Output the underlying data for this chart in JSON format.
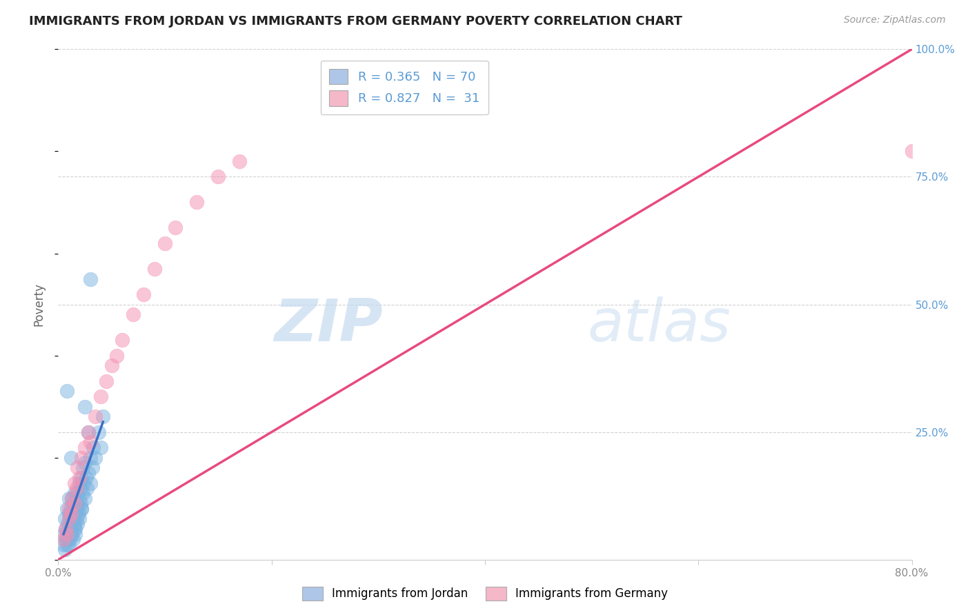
{
  "title": "IMMIGRANTS FROM JORDAN VS IMMIGRANTS FROM GERMANY POVERTY CORRELATION CHART",
  "source": "Source: ZipAtlas.com",
  "ylabel": "Poverty",
  "xlim": [
    0.0,
    0.8
  ],
  "ylim": [
    0.0,
    1.0
  ],
  "xticks": [
    0.0,
    0.2,
    0.4,
    0.6,
    0.8
  ],
  "xticklabels": [
    "0.0%",
    "",
    "",
    "",
    "80.0%"
  ],
  "ytick_positions": [
    0.0,
    0.25,
    0.5,
    0.75,
    1.0
  ],
  "ytick_labels_right": [
    "",
    "25.0%",
    "50.0%",
    "75.0%",
    "100.0%"
  ],
  "legend_label_jordan": "R = 0.365   N = 70",
  "legend_label_germany": "R = 0.827   N =  31",
  "jordan_color": "#7ab3e0",
  "germany_color": "#f48fb1",
  "jordan_line_color": "#3a6fc4",
  "germany_line_color": "#e84a7f",
  "diagonal_color": "#b8cfe0",
  "watermark_zip": "ZIP",
  "watermark_atlas": "atlas",
  "background_color": "#ffffff",
  "grid_color": "#cccccc",
  "jordan_x": [
    0.005,
    0.006,
    0.007,
    0.008,
    0.008,
    0.009,
    0.01,
    0.01,
    0.01,
    0.011,
    0.011,
    0.012,
    0.012,
    0.012,
    0.013,
    0.013,
    0.014,
    0.014,
    0.015,
    0.015,
    0.015,
    0.016,
    0.016,
    0.017,
    0.017,
    0.018,
    0.018,
    0.019,
    0.02,
    0.02,
    0.021,
    0.021,
    0.022,
    0.022,
    0.023,
    0.023,
    0.024,
    0.025,
    0.025,
    0.026,
    0.027,
    0.028,
    0.03,
    0.03,
    0.032,
    0.033,
    0.035,
    0.038,
    0.04,
    0.042,
    0.005,
    0.006,
    0.007,
    0.008,
    0.009,
    0.01,
    0.011,
    0.012,
    0.013,
    0.014,
    0.015,
    0.016,
    0.018,
    0.02,
    0.022,
    0.025,
    0.028,
    0.03,
    0.008,
    0.012
  ],
  "jordan_y": [
    0.05,
    0.08,
    0.06,
    0.04,
    0.1,
    0.07,
    0.09,
    0.05,
    0.12,
    0.08,
    0.06,
    0.1,
    0.07,
    0.05,
    0.09,
    0.12,
    0.08,
    0.11,
    0.07,
    0.1,
    0.13,
    0.09,
    0.06,
    0.11,
    0.08,
    0.1,
    0.13,
    0.09,
    0.12,
    0.15,
    0.11,
    0.14,
    0.1,
    0.16,
    0.13,
    0.18,
    0.15,
    0.12,
    0.19,
    0.16,
    0.14,
    0.17,
    0.15,
    0.2,
    0.18,
    0.22,
    0.2,
    0.25,
    0.22,
    0.28,
    0.03,
    0.02,
    0.04,
    0.03,
    0.05,
    0.03,
    0.04,
    0.06,
    0.05,
    0.04,
    0.06,
    0.05,
    0.07,
    0.08,
    0.1,
    0.3,
    0.25,
    0.55,
    0.33,
    0.2
  ],
  "germany_x": [
    0.005,
    0.007,
    0.008,
    0.01,
    0.01,
    0.012,
    0.013,
    0.015,
    0.015,
    0.017,
    0.018,
    0.02,
    0.022,
    0.025,
    0.028,
    0.03,
    0.035,
    0.04,
    0.045,
    0.05,
    0.055,
    0.06,
    0.07,
    0.08,
    0.09,
    0.1,
    0.11,
    0.13,
    0.15,
    0.17,
    0.8
  ],
  "germany_y": [
    0.04,
    0.06,
    0.05,
    0.08,
    0.1,
    0.09,
    0.12,
    0.11,
    0.15,
    0.14,
    0.18,
    0.16,
    0.2,
    0.22,
    0.25,
    0.23,
    0.28,
    0.32,
    0.35,
    0.38,
    0.4,
    0.43,
    0.48,
    0.52,
    0.57,
    0.62,
    0.65,
    0.7,
    0.75,
    0.78,
    0.8
  ],
  "germany_line_x": [
    0.0,
    0.8
  ],
  "germany_line_y": [
    0.0,
    1.0
  ],
  "jordan_line_x": [
    0.005,
    0.042
  ],
  "jordan_line_y": [
    0.05,
    0.27
  ]
}
